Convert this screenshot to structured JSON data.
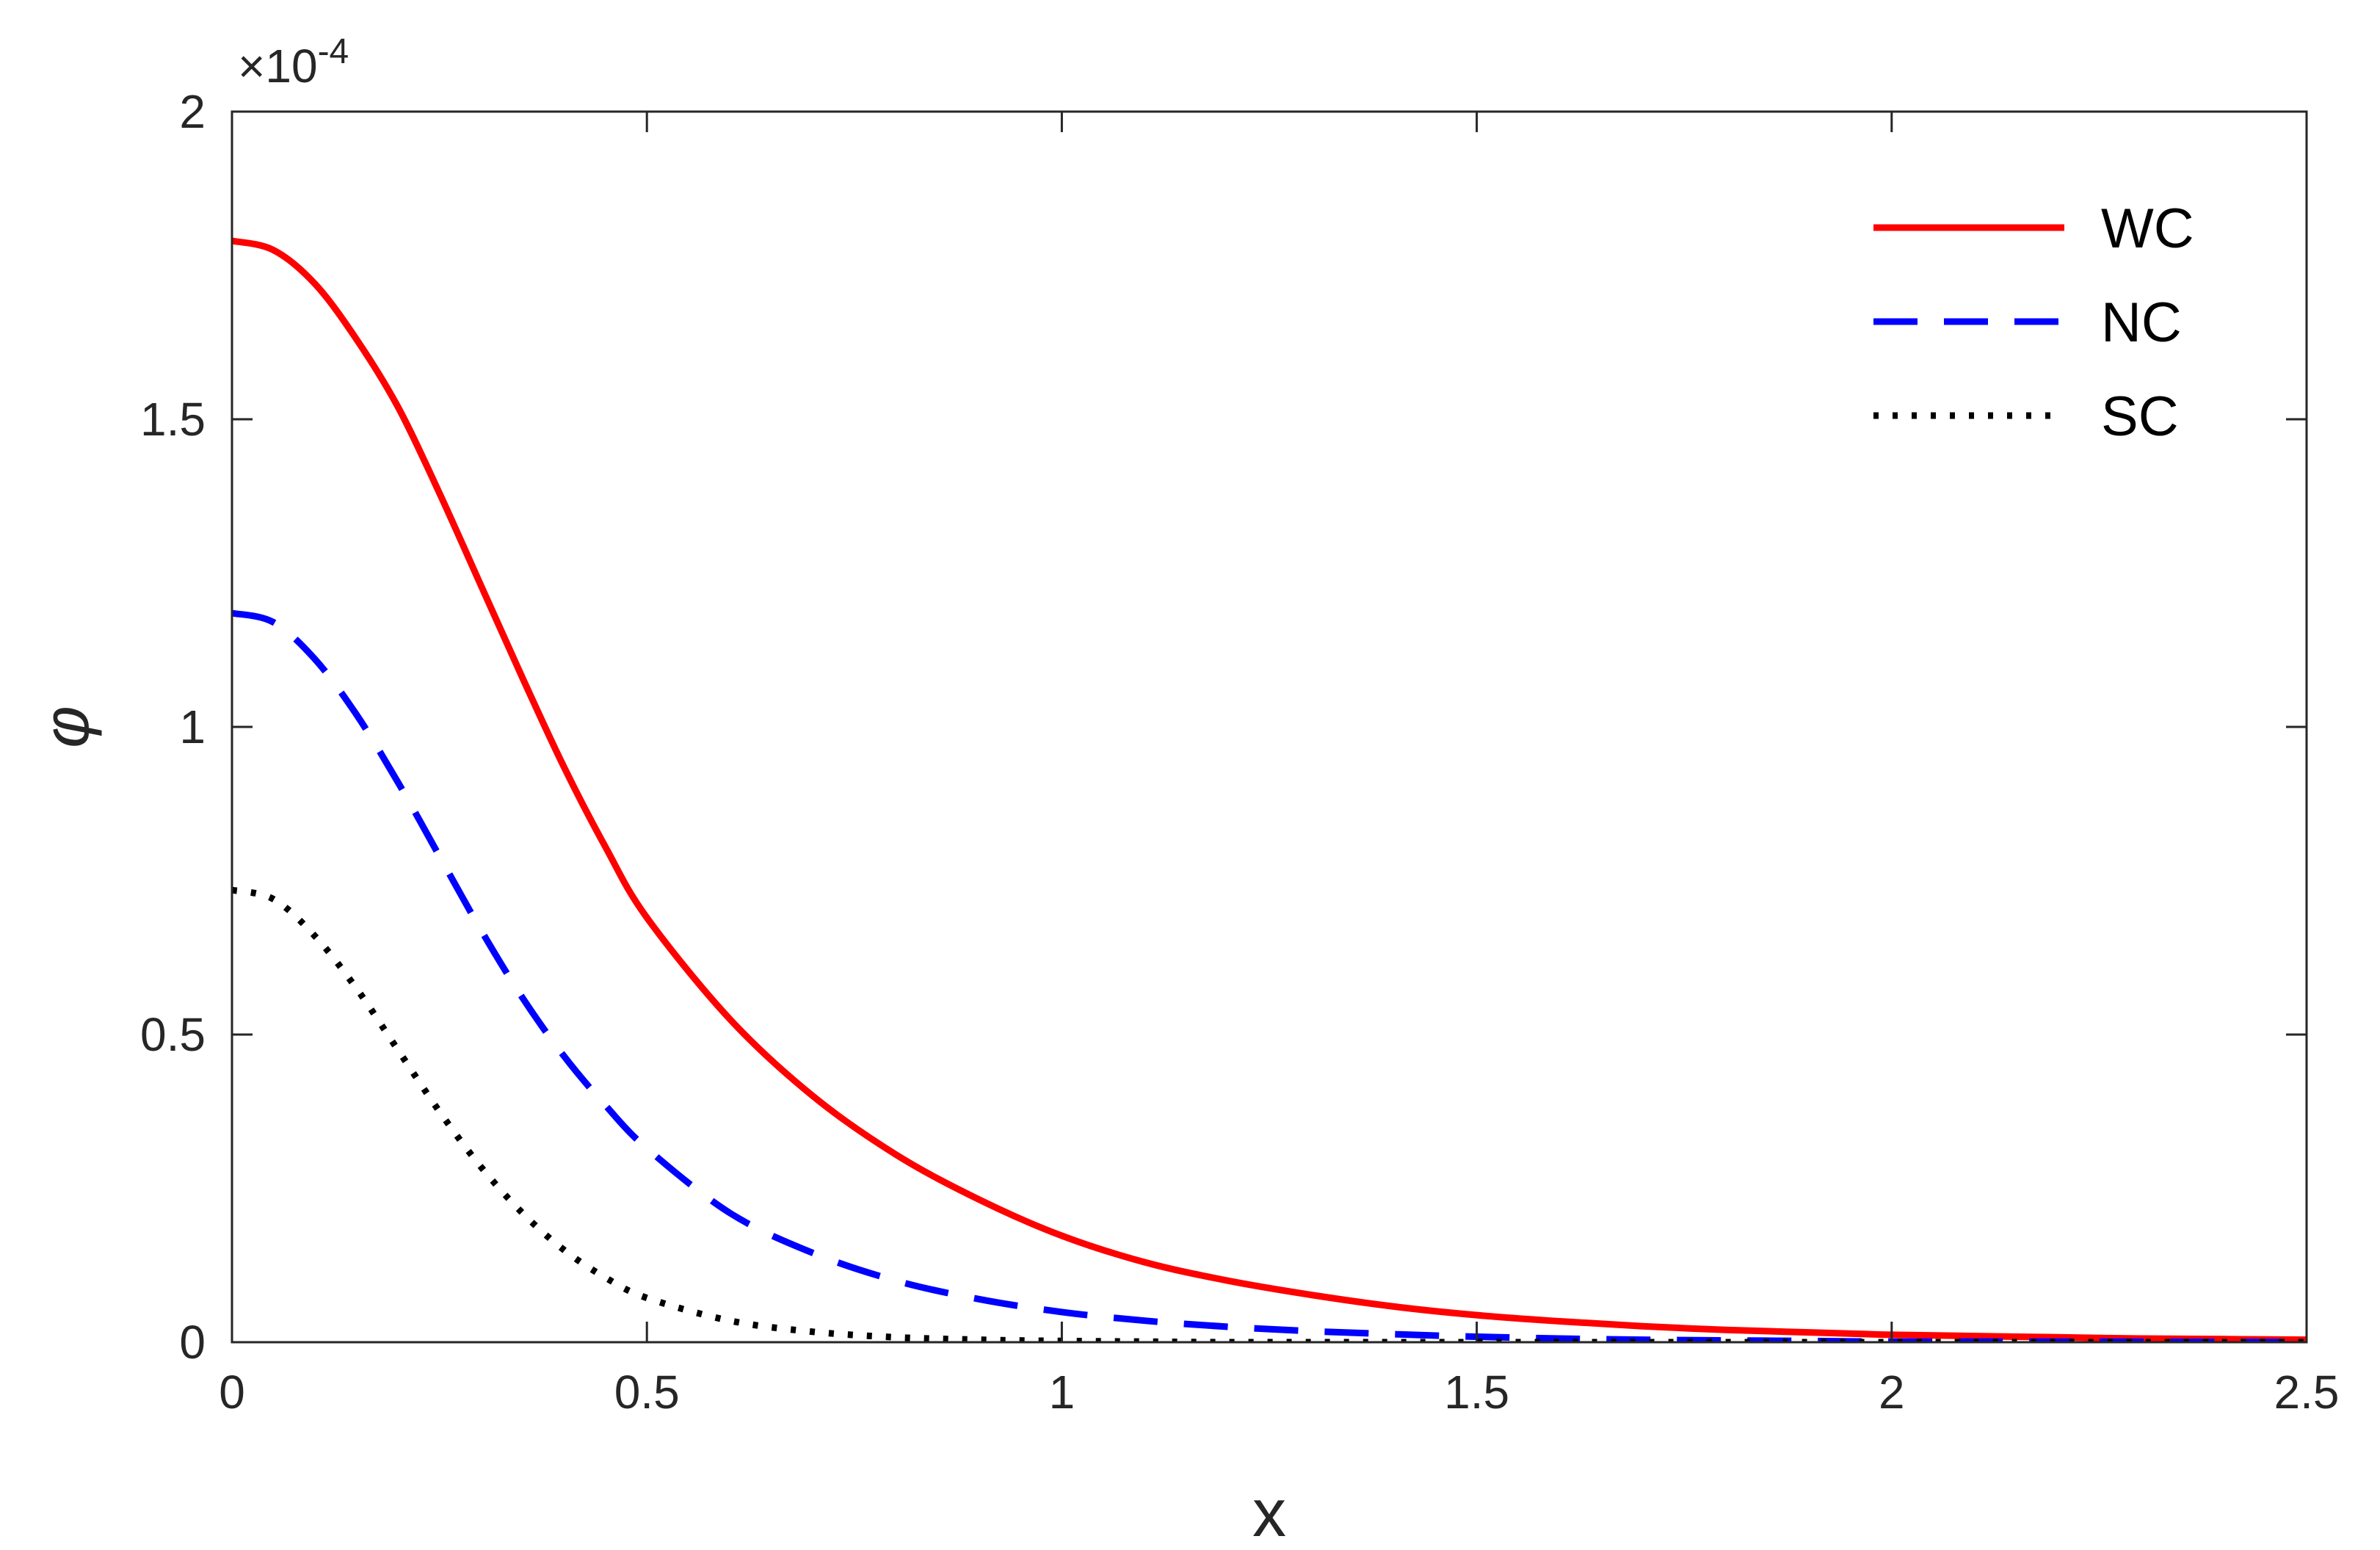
{
  "chart_data": {
    "type": "line",
    "xlabel": "x",
    "ylabel": "φ",
    "xlim": [
      0,
      2.5
    ],
    "ylim": [
      0,
      0.0002
    ],
    "y_exponent_label": "×10",
    "y_exponent_power": "-4",
    "xticks": [
      0,
      0.5,
      1,
      1.5,
      2,
      2.5
    ],
    "xtick_labels": [
      "0",
      "0.5",
      "1",
      "1.5",
      "2",
      "2.5"
    ],
    "yticks": [
      0,
      5e-05,
      0.0001,
      0.00015,
      0.0002
    ],
    "ytick_labels": [
      "0",
      "0.5",
      "1",
      "1.5",
      "2"
    ],
    "grid": false,
    "legend_position": "top-right",
    "series": [
      {
        "name": "WC",
        "color": "#ff0000",
        "style": "solid",
        "x": [
          0,
          0.05,
          0.1,
          0.15,
          0.2,
          0.25,
          0.3,
          0.35,
          0.4,
          0.45,
          0.5,
          0.6,
          0.7,
          0.8,
          0.9,
          1.0,
          1.1,
          1.2,
          1.3,
          1.4,
          1.5,
          1.6,
          1.7,
          1.8,
          1.9,
          2.0,
          2.1,
          2.2,
          2.3,
          2.4,
          2.5
        ],
        "y": [
          0.000179,
          0.0001775,
          0.000172,
          0.000163,
          0.000152,
          0.000138,
          0.000123,
          0.000108,
          9.35e-05,
          8.05e-05,
          6.9e-05,
          5.25e-05,
          4e-05,
          3.05e-05,
          2.32e-05,
          1.73e-05,
          1.3e-05,
          1e-05,
          7.7e-06,
          5.8e-06,
          4.4e-06,
          3.4e-06,
          2.6e-06,
          2e-06,
          1.6e-06,
          1.2e-06,
          1e-06,
          8e-07,
          6e-07,
          5e-07,
          4e-07
        ]
      },
      {
        "name": "NC",
        "color": "#0000ff",
        "style": "dashed",
        "x": [
          0,
          0.05,
          0.1,
          0.15,
          0.2,
          0.25,
          0.3,
          0.35,
          0.4,
          0.45,
          0.5,
          0.6,
          0.7,
          0.8,
          0.9,
          1.0,
          1.1,
          1.2,
          1.3,
          1.4,
          1.5,
          1.6,
          1.7,
          1.8,
          1.9,
          2.0,
          2.2,
          2.5
        ],
        "y": [
          0.0001185,
          0.000117,
          0.000111,
          0.000102,
          9.1e-05,
          7.9e-05,
          6.7e-05,
          5.6e-05,
          4.65e-05,
          3.85e-05,
          3.15e-05,
          2.1e-05,
          1.45e-05,
          1e-05,
          7e-06,
          4.9e-06,
          3.5e-06,
          2.5e-06,
          1.8e-06,
          1.3e-06,
          9e-07,
          6e-07,
          4e-07,
          3e-07,
          2e-07,
          1e-07,
          1e-07,
          0.0
        ]
      },
      {
        "name": "SC",
        "color": "#000000",
        "style": "dotted",
        "x": [
          0,
          0.05,
          0.1,
          0.15,
          0.2,
          0.25,
          0.3,
          0.35,
          0.4,
          0.45,
          0.5,
          0.6,
          0.7,
          0.8,
          0.9,
          1.0,
          1.1,
          1.2,
          1.4,
          1.6,
          2.0,
          2.5
        ],
        "y": [
          7.35e-05,
          7.2e-05,
          6.6e-05,
          5.75e-05,
          4.75e-05,
          3.75e-05,
          2.85e-05,
          2.1e-05,
          1.5e-05,
          1.05e-05,
          7.2e-06,
          3.5e-06,
          1.7e-06,
          8e-07,
          4e-07,
          2e-07,
          1e-07,
          0.0,
          0.0,
          0.0,
          0.0,
          0.0
        ]
      }
    ]
  }
}
